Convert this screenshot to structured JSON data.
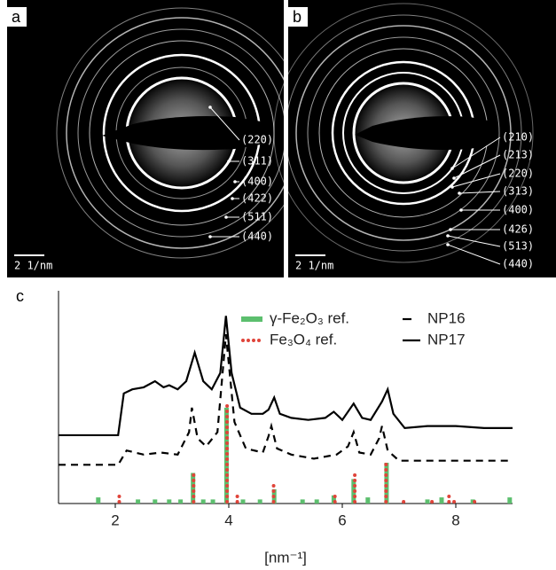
{
  "panel_a": {
    "letter": "a",
    "scale": "2 1/nm",
    "labels": [
      "(220)",
      "(311)",
      "(400)",
      "(422)",
      "(511)",
      "(440)"
    ]
  },
  "panel_b": {
    "letter": "b",
    "scale": "2 1/nm",
    "labels": [
      "(210)",
      "(213)",
      "(220)",
      "(313)",
      "(400)",
      "(426)",
      "(513)",
      "(440)"
    ]
  },
  "chart_data": {
    "type": "line",
    "panel": "c",
    "xlabel": "[nm⁻¹]",
    "xlim": [
      1,
      9
    ],
    "xticks": [
      2,
      4,
      6,
      8
    ],
    "ylim": [
      0,
      100
    ],
    "legend": "upper-right",
    "series": [
      {
        "name": "γ-Fe₂O₃ ref.",
        "style": "stick",
        "color": "#5cbf6e",
        "x": [
          1.7,
          2.4,
          2.7,
          2.95,
          3.15,
          3.37,
          3.55,
          3.72,
          3.96,
          4.25,
          4.55,
          4.8,
          5.3,
          5.55,
          5.85,
          6.2,
          6.45,
          6.78,
          7.5,
          7.75,
          8.3,
          8.95
        ],
        "values": [
          3,
          2,
          2,
          2,
          2,
          15,
          2,
          2,
          47,
          2,
          2,
          7,
          2,
          2,
          4,
          12,
          3,
          20,
          2,
          3,
          2,
          3
        ]
      },
      {
        "name": "NP16",
        "style": "dashed",
        "color": "#000000",
        "x": [
          1,
          2.05,
          2.2,
          2.5,
          2.8,
          3.1,
          3.3,
          3.35,
          3.45,
          3.6,
          3.8,
          3.95,
          4.1,
          4.3,
          4.6,
          4.7,
          4.75,
          4.85,
          5.1,
          5.5,
          5.9,
          6.1,
          6.2,
          6.3,
          6.5,
          6.65,
          6.7,
          6.8,
          7,
          7.5,
          8,
          9
        ],
        "values": [
          19,
          19,
          26,
          24,
          25,
          24,
          35,
          47,
          32,
          28,
          35,
          83,
          40,
          27,
          25,
          33,
          38,
          27,
          24,
          22,
          24,
          28,
          35,
          25,
          24,
          32,
          38,
          26,
          21,
          21,
          21,
          21
        ]
      },
      {
        "name": "Fe₃O₄ ref.",
        "style": "dotted-stick",
        "color": "#e0443a",
        "x": [
          2.07,
          3.38,
          3.97,
          4.15,
          4.79,
          5.87,
          6.22,
          6.77,
          7.08,
          7.58,
          7.88,
          7.97,
          8.33
        ],
        "values": [
          4,
          15,
          49,
          4,
          10,
          5,
          15,
          20,
          1,
          2,
          5,
          1.5,
          1.5
        ]
      },
      {
        "name": "NP17",
        "style": "solid",
        "color": "#000000",
        "x": [
          1,
          2.05,
          2.15,
          2.3,
          2.5,
          2.7,
          2.85,
          2.95,
          3.1,
          3.25,
          3.4,
          3.55,
          3.7,
          3.85,
          3.95,
          4.05,
          4.2,
          4.4,
          4.6,
          4.7,
          4.8,
          4.9,
          5.1,
          5.4,
          5.7,
          5.85,
          6.0,
          6.2,
          6.35,
          6.5,
          6.7,
          6.8,
          6.9,
          7.1,
          7.5,
          8,
          8.5,
          9
        ],
        "values": [
          33.5,
          33.5,
          54,
          56,
          57,
          60,
          57,
          58,
          56,
          60,
          74,
          60,
          56,
          64,
          92,
          64,
          47,
          44,
          44,
          46,
          52,
          44,
          42,
          41,
          42,
          45,
          41,
          49,
          42,
          41,
          50,
          56,
          44,
          37,
          38,
          38,
          37,
          37
        ]
      }
    ]
  }
}
